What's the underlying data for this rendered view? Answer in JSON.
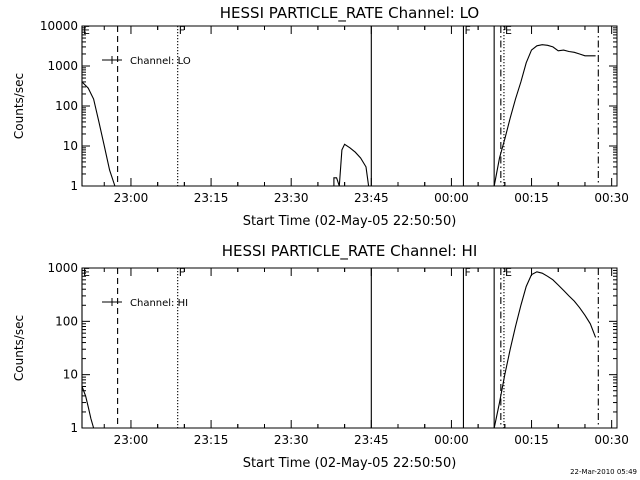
{
  "footer": {
    "timestamp": "22-Mar-2010 05:49"
  },
  "chart_data": [
    {
      "type": "line",
      "title": "HESSI PARTICLE_RATE Channel: LO",
      "xlabel": "Start Time (02-May-05 22:50:50)",
      "ylabel": "Counts/sec",
      "y_scale": "log",
      "xlim": [
        "22:50:50",
        "00:31:00"
      ],
      "ylim": [
        1,
        10000
      ],
      "x_ticks": [
        "23:00",
        "23:15",
        "23:30",
        "23:45",
        "00:00",
        "00:15",
        "00:30"
      ],
      "y_ticks": [
        "1",
        "10",
        "100",
        "1000",
        "10000"
      ],
      "legend": {
        "label": "Channel: LO",
        "placement": "top-left"
      },
      "grid": false,
      "series": [
        {
          "segment": 1,
          "x": [
            "22:50:50",
            "22:52:00",
            "22:53:00",
            "22:54:00",
            "22:55:00",
            "22:56:00",
            "22:57:00"
          ],
          "y": [
            400,
            280,
            150,
            40,
            10,
            2.5,
            1
          ]
        },
        {
          "segment": 2,
          "x": [
            "23:38:00",
            "23:38:00",
            "23:38:30",
            "23:39:00",
            "23:39:30",
            "23:40:00",
            "23:41:00",
            "23:42:00",
            "23:43:00",
            "23:44:00",
            "23:44:30"
          ],
          "y": [
            1,
            1.6,
            1.6,
            1,
            8,
            11,
            9,
            7,
            5,
            3,
            1
          ]
        },
        {
          "segment": 3,
          "x": [
            "00:08:00",
            "00:09:00",
            "00:10:00",
            "00:11:00",
            "00:12:00",
            "00:13:00",
            "00:14:00",
            "00:15:00",
            "00:16:00",
            "00:17:00",
            "00:18:00",
            "00:19:00",
            "00:20:00",
            "00:21:00",
            "00:22:00",
            "00:23:00",
            "00:24:00",
            "00:25:00",
            "00:26:00",
            "00:27:00"
          ],
          "y": [
            1,
            5,
            15,
            50,
            150,
            400,
            1200,
            2500,
            3200,
            3400,
            3300,
            3000,
            2400,
            2500,
            2300,
            2200,
            2000,
            1800,
            1800,
            1800
          ]
        }
      ],
      "vlines": [
        {
          "label": "E",
          "x": "22:50:50",
          "style": "solid"
        },
        {
          "label": "",
          "x": "22:57:30",
          "style": "dashed"
        },
        {
          "label": "F",
          "x": "23:08:45",
          "style": "dotted"
        },
        {
          "label": "",
          "x": "23:45:00",
          "style": "solid"
        },
        {
          "label": "F",
          "x": "00:02:15",
          "style": "solid"
        },
        {
          "label": "",
          "x": "00:08:00",
          "style": "solid"
        },
        {
          "label": "",
          "x": "00:09:15",
          "style": "dashdot"
        },
        {
          "label": "E",
          "x": "00:09:50",
          "style": "dotted"
        },
        {
          "label": "",
          "x": "00:27:30",
          "style": "dashdot"
        }
      ]
    },
    {
      "type": "line",
      "title": "HESSI PARTICLE_RATE Channel: HI",
      "xlabel": "Start Time (02-May-05 22:50:50)",
      "ylabel": "Counts/sec",
      "y_scale": "log",
      "xlim": [
        "22:50:50",
        "00:31:00"
      ],
      "ylim": [
        1,
        1000
      ],
      "x_ticks": [
        "23:00",
        "23:15",
        "23:30",
        "23:45",
        "00:00",
        "00:15",
        "00:30"
      ],
      "y_ticks": [
        "1",
        "10",
        "100",
        "1000"
      ],
      "legend": {
        "label": "Channel: HI",
        "placement": "top-left"
      },
      "grid": false,
      "series": [
        {
          "segment": 1,
          "x": [
            "22:50:50",
            "22:51:30",
            "22:52:00",
            "22:52:30",
            "22:53:00"
          ],
          "y": [
            6,
            4,
            2.5,
            1.5,
            1
          ]
        },
        {
          "segment": 2,
          "x": [
            "00:08:00",
            "00:09:00",
            "00:10:00",
            "00:11:00",
            "00:12:00",
            "00:13:00",
            "00:14:00",
            "00:15:00",
            "00:16:00",
            "00:17:00",
            "00:18:00",
            "00:19:00",
            "00:20:00",
            "00:21:00",
            "00:22:00",
            "00:23:00",
            "00:24:00",
            "00:25:00",
            "00:26:00",
            "00:27:00"
          ],
          "y": [
            1,
            3,
            10,
            30,
            80,
            200,
            450,
            750,
            850,
            800,
            700,
            600,
            480,
            380,
            300,
            240,
            180,
            130,
            90,
            50
          ]
        }
      ],
      "vlines": [
        {
          "label": "E",
          "x": "22:50:50",
          "style": "solid"
        },
        {
          "label": "",
          "x": "22:57:30",
          "style": "dashed"
        },
        {
          "label": "F",
          "x": "23:08:45",
          "style": "dotted"
        },
        {
          "label": "",
          "x": "23:45:00",
          "style": "solid"
        },
        {
          "label": "F",
          "x": "00:02:15",
          "style": "solid"
        },
        {
          "label": "",
          "x": "00:08:00",
          "style": "solid"
        },
        {
          "label": "",
          "x": "00:09:15",
          "style": "dashdot"
        },
        {
          "label": "E",
          "x": "00:09:50",
          "style": "dotted"
        },
        {
          "label": "",
          "x": "00:27:30",
          "style": "dashdot"
        }
      ]
    }
  ]
}
